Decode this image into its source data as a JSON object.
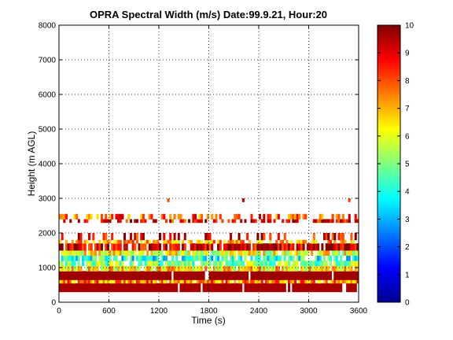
{
  "chart_data": {
    "type": "heatmap",
    "title": "OPRA Spectral Width (m/s)  Date:99.9.21, Hour:20",
    "xlabel": "Time (s)",
    "ylabel": "Height (m AGL)",
    "xlim": [
      0,
      3600
    ],
    "ylim": [
      0,
      8000
    ],
    "x_ticks": [
      0,
      600,
      1200,
      1800,
      2400,
      3000,
      3600
    ],
    "y_ticks": [
      0,
      1000,
      2000,
      3000,
      4000,
      5000,
      6000,
      7000,
      8000
    ],
    "grid": true,
    "colorbar": {
      "range": [
        0,
        10
      ],
      "ticks": [
        0,
        1,
        2,
        3,
        4,
        5,
        6,
        7,
        8,
        9,
        10
      ],
      "colormap": "jet"
    },
    "layers": [
      {
        "height_range": [
          300,
          550
        ],
        "value": 9.6,
        "coverage": 0.95,
        "fragmented": false
      },
      {
        "height_range": [
          550,
          650
        ],
        "value": 7.5,
        "coverage": 0.9,
        "fragmented": true
      },
      {
        "height_range": [
          650,
          900
        ],
        "value": 9.7,
        "coverage": 0.98,
        "fragmented": false
      },
      {
        "height_range": [
          900,
          1050
        ],
        "value": 6.5,
        "coverage": 0.9,
        "fragmented": true
      },
      {
        "height_range": [
          1050,
          1200
        ],
        "value": 5.0,
        "coverage": 0.85,
        "fragmented": true
      },
      {
        "height_range": [
          1200,
          1350
        ],
        "value": 4.0,
        "coverage": 0.8,
        "fragmented": true
      },
      {
        "height_range": [
          1350,
          1500
        ],
        "value": 6.0,
        "coverage": 0.85,
        "fragmented": true
      },
      {
        "height_range": [
          1500,
          1700
        ],
        "value": 9.2,
        "coverage": 0.85,
        "fragmented": true
      },
      {
        "height_range": [
          1700,
          1800
        ],
        "value": 7.0,
        "coverage": 0.6,
        "fragmented": true
      },
      {
        "height_range": [
          1800,
          2000
        ],
        "value": 9.0,
        "coverage": 0.35,
        "fragmented": true
      },
      {
        "height_range": [
          2300,
          2400
        ],
        "value": 9.0,
        "coverage": 0.55,
        "fragmented": true
      },
      {
        "height_range": [
          2400,
          2550
        ],
        "value": 8.0,
        "coverage": 0.35,
        "fragmented": true
      },
      {
        "height_range": [
          2900,
          3000
        ],
        "value": 9.0,
        "coverage": 0.01,
        "fragmented": true
      }
    ]
  }
}
